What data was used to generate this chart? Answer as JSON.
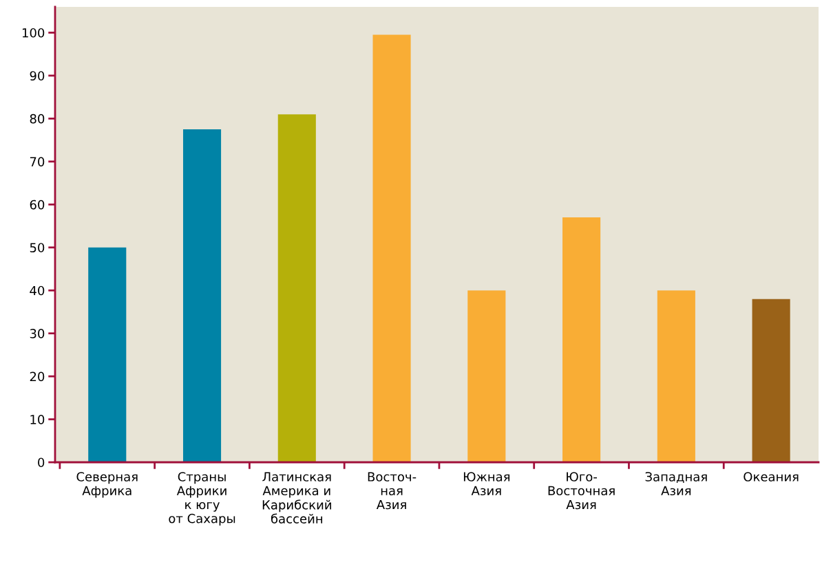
{
  "chart_data": {
    "type": "bar",
    "categories": [
      "Северная\nАфрика",
      "Страны\nАфрики\nк югу\nот Сахары",
      "Латинская\nАмерика и\nКарибский\nбассейн",
      "Восточ-\nная\nАзия",
      "Южная\nАзия",
      "Юго-\nВосточная\nАзия",
      "Западная\nАзия",
      "Океания"
    ],
    "values": [
      50,
      77.5,
      81,
      99.5,
      40,
      57,
      40,
      38
    ],
    "colors": [
      "#0083a6",
      "#0083a6",
      "#b5b00a",
      "#f9ad35",
      "#f9ad35",
      "#f9ad35",
      "#f9ad35",
      "#9a6218"
    ],
    "ylim": [
      0,
      106
    ],
    "yticks": [
      0,
      10,
      20,
      30,
      40,
      50,
      60,
      70,
      80,
      90,
      100
    ],
    "grid": false,
    "legend": false
  }
}
